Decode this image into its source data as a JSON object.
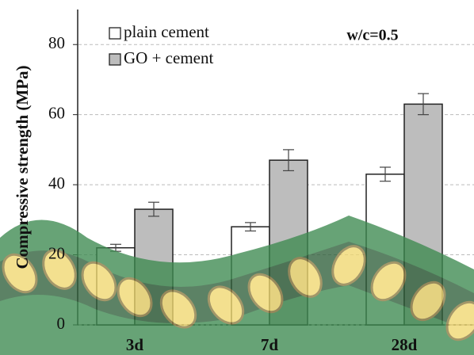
{
  "chart_data": {
    "type": "bar",
    "y_label": "Compressive strength (MPa)",
    "annotation": "w/c=0.5",
    "categories": [
      "3d",
      "7d",
      "28d"
    ],
    "series": [
      {
        "name": "plain cement",
        "color": "#ffffff",
        "values": [
          22,
          28,
          43
        ],
        "errors": [
          1,
          1.2,
          2
        ]
      },
      {
        "name": "GO + cement",
        "color": "#bdbdbd",
        "values": [
          33,
          47,
          63
        ],
        "errors": [
          2,
          3,
          3
        ]
      }
    ],
    "ylim": [
      0,
      90
    ],
    "yticks": [
      0,
      20,
      40,
      60,
      80
    ],
    "grid": true,
    "legend": "upper left"
  }
}
